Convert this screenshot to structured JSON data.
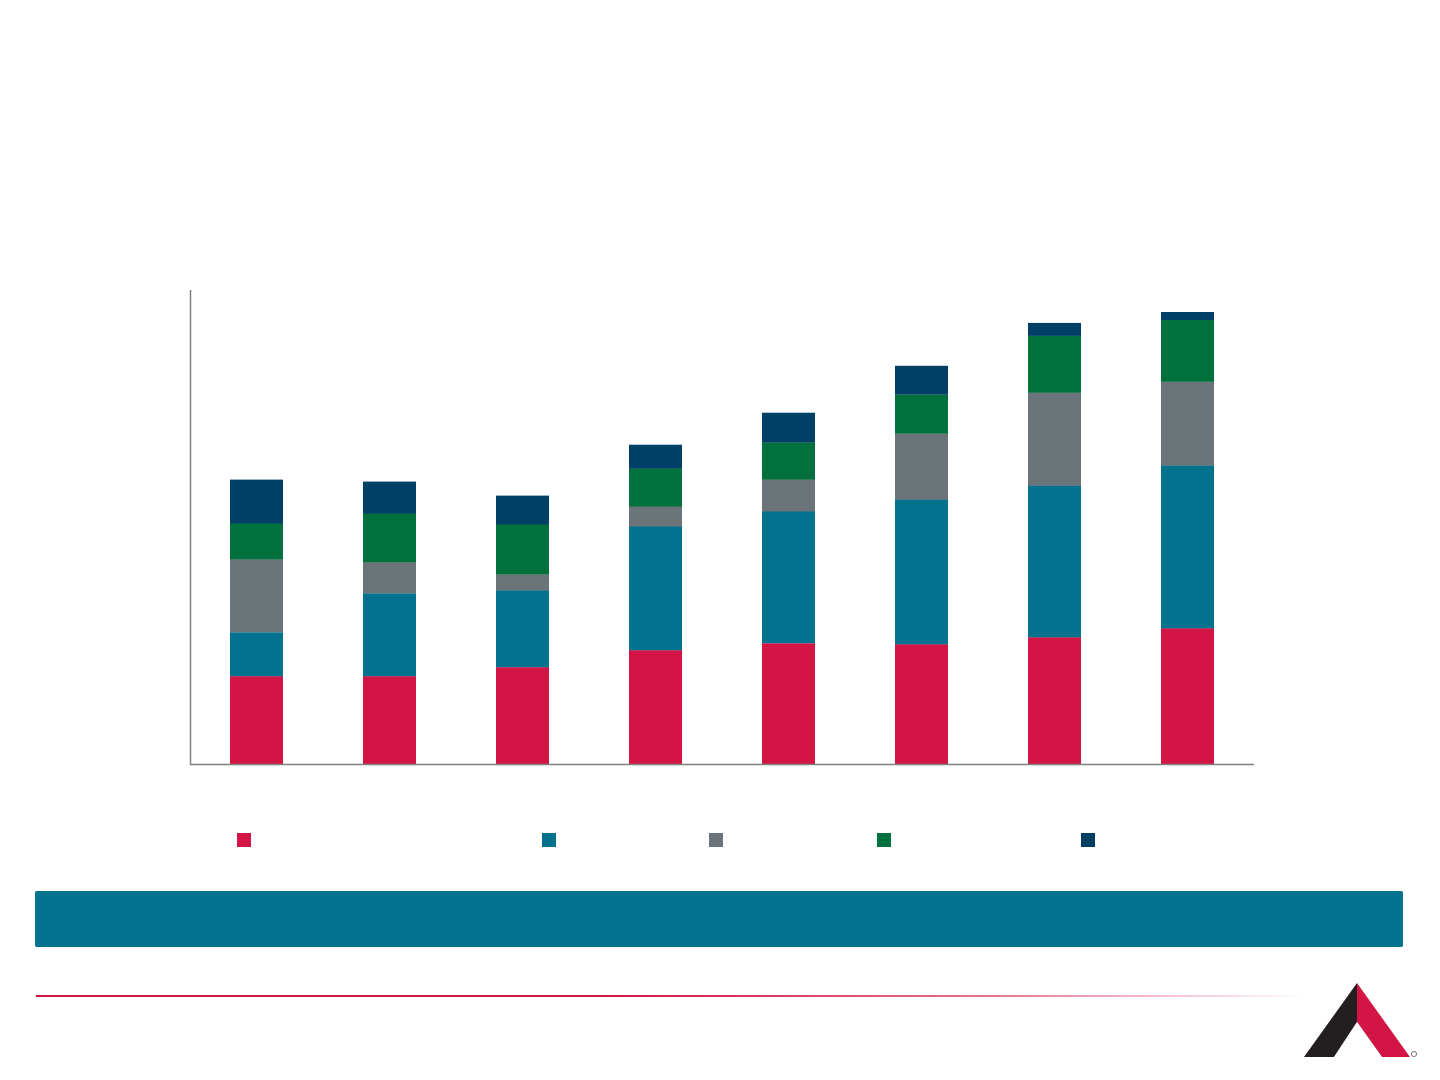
{
  "chart_data": {
    "type": "bar",
    "stacked": true,
    "categories": [
      "",
      "",
      "",
      "",
      "",
      "",
      "",
      ""
    ],
    "series": [
      {
        "color": "#d31545",
        "values": [
          88,
          88,
          97,
          114,
          121,
          120,
          127,
          136
        ]
      },
      {
        "color": "#03728f",
        "values": [
          44,
          83,
          77,
          124,
          132,
          145,
          152,
          163
        ]
      },
      {
        "color": "#6a7479",
        "values": [
          73,
          31,
          16,
          20,
          32,
          66,
          93,
          84
        ]
      },
      {
        "color": "#00703c",
        "values": [
          36,
          49,
          50,
          38,
          37,
          39,
          57,
          62
        ]
      },
      {
        "color": "#003f66",
        "values": [
          44,
          32,
          29,
          24,
          30,
          29,
          13,
          8
        ]
      }
    ],
    "ylim": [
      0,
      475
    ],
    "grid": false,
    "legend": {
      "position": "bottom"
    }
  },
  "colors": {
    "banner": "#03728f",
    "accent": "#d31545"
  },
  "logo": {
    "icon": "company-logo-icon"
  }
}
